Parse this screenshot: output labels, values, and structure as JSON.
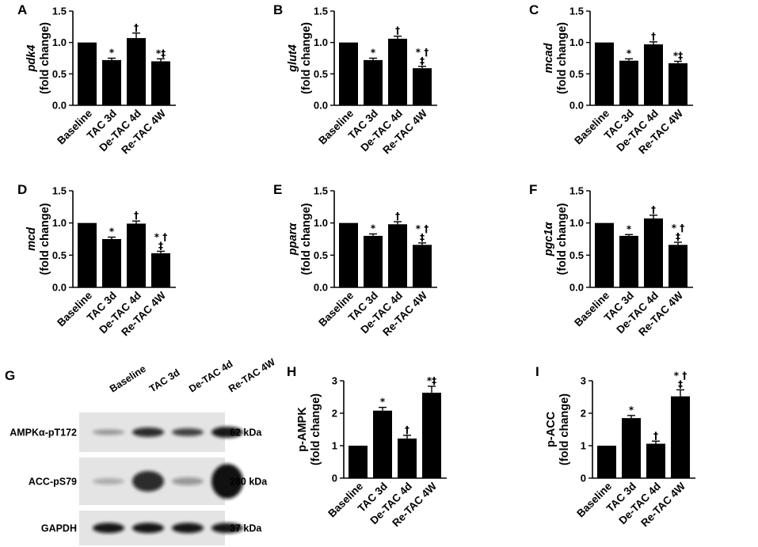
{
  "figure": {
    "categories": [
      "Baseline",
      "TAC 3d",
      "De-TAC 4d",
      "Re-TAC 4W"
    ],
    "blot": {
      "panel_label": "G",
      "lanes": [
        "Baseline",
        "TAC 3d",
        "De-TAC 4d",
        "Re-TAC 4W"
      ],
      "rows": [
        {
          "protein": "AMPKα-pT172",
          "size": "62 kDa"
        },
        {
          "protein": "ACC-pS79",
          "size": "280 kDa"
        },
        {
          "protein": "GAPDH",
          "size": "37 kDa"
        }
      ]
    }
  },
  "chart_data": [
    {
      "panel": "A",
      "type": "bar",
      "gene": "pdk4",
      "ylabel_line2": "(fold change)",
      "categories": [
        "Baseline",
        "TAC 3d",
        "De-TAC 4d",
        "Re-TAC 4W"
      ],
      "values": [
        1.0,
        0.72,
        1.07,
        0.7
      ],
      "errors": [
        0,
        0.03,
        0.08,
        0.04
      ],
      "yticks": [
        "0.0",
        "0.5",
        "1.0",
        "1.5"
      ],
      "ylim": [
        0,
        1.5
      ],
      "annotations": [
        [],
        [
          "*"
        ],
        [
          "†"
        ],
        [
          "*‡"
        ]
      ]
    },
    {
      "panel": "B",
      "type": "bar",
      "gene": "glut4",
      "ylabel_line2": "(fold change)",
      "categories": [
        "Baseline",
        "TAC 3d",
        "De-TAC 4d",
        "Re-TAC 4W"
      ],
      "values": [
        1.0,
        0.72,
        1.06,
        0.59
      ],
      "errors": [
        0,
        0.03,
        0.04,
        0.03
      ],
      "yticks": [
        "0.0",
        "0.5",
        "1.0",
        "1.5"
      ],
      "ylim": [
        0,
        1.5
      ],
      "annotations": [
        [],
        [
          "*"
        ],
        [
          "†"
        ],
        [
          "* †",
          "‡"
        ]
      ]
    },
    {
      "panel": "C",
      "type": "bar",
      "gene": "mcad",
      "ylabel_line2": "(fold change)",
      "categories": [
        "Baseline",
        "TAC 3d",
        "De-TAC 4d",
        "Re-TAC 4W"
      ],
      "values": [
        1.0,
        0.71,
        0.97,
        0.67
      ],
      "errors": [
        0,
        0.03,
        0.04,
        0.03
      ],
      "yticks": [
        "0.0",
        "0.5",
        "1.0",
        "1.5"
      ],
      "ylim": [
        0,
        1.5
      ],
      "annotations": [
        [],
        [
          "*"
        ],
        [
          "†"
        ],
        [
          "*‡"
        ]
      ]
    },
    {
      "panel": "D",
      "type": "bar",
      "gene": "mcd",
      "ylabel_line2": "(fold change)",
      "categories": [
        "Baseline",
        "TAC 3d",
        "De-TAC 4d",
        "Re-TAC 4W"
      ],
      "values": [
        1.0,
        0.75,
        0.99,
        0.53
      ],
      "errors": [
        0,
        0.03,
        0.04,
        0.03
      ],
      "yticks": [
        "0.0",
        "0.5",
        "1.0",
        "1.5"
      ],
      "ylim": [
        0,
        1.5
      ],
      "annotations": [
        [],
        [
          "*"
        ],
        [
          "†"
        ],
        [
          "* †",
          "‡"
        ]
      ]
    },
    {
      "panel": "E",
      "type": "bar",
      "gene": "pparα",
      "ylabel_line2": "(fold change)",
      "categories": [
        "Baseline",
        "TAC 3d",
        "De-TAC 4d",
        "Re-TAC 4W"
      ],
      "values": [
        1.0,
        0.8,
        0.98,
        0.66
      ],
      "errors": [
        0,
        0.03,
        0.04,
        0.03
      ],
      "yticks": [
        "0.0",
        "0.5",
        "1.0",
        "1.5"
      ],
      "ylim": [
        0,
        1.5
      ],
      "annotations": [
        [],
        [
          "*"
        ],
        [
          "†"
        ],
        [
          "* †",
          "‡"
        ]
      ]
    },
    {
      "panel": "F",
      "type": "bar",
      "gene": "pgc1α",
      "ylabel_line2": "(fold change)",
      "categories": [
        "Baseline",
        "TAC 3d",
        "De-TAC 4d",
        "Re-TAC 4W"
      ],
      "values": [
        1.0,
        0.8,
        1.07,
        0.66
      ],
      "errors": [
        0,
        0.02,
        0.05,
        0.04
      ],
      "yticks": [
        "0.0",
        "0.5",
        "1.0",
        "1.5"
      ],
      "ylim": [
        0,
        1.5
      ],
      "annotations": [
        [],
        [
          "*"
        ],
        [
          "†"
        ],
        [
          "* †",
          "‡"
        ]
      ]
    },
    {
      "panel": "H",
      "type": "bar",
      "ylabel_line1": "p-AMPK",
      "ylabel_line2": "(fold change)",
      "categories": [
        "Baseline",
        "TAC 3d",
        "De-TAC 4d",
        "Re-TAC 4W"
      ],
      "values": [
        1.0,
        2.08,
        1.22,
        2.63
      ],
      "errors": [
        0,
        0.1,
        0.1,
        0.2
      ],
      "yticks": [
        "0",
        "1",
        "2",
        "3"
      ],
      "ylim": [
        0,
        3
      ],
      "annotations": [
        [],
        [
          "*"
        ],
        [
          "†"
        ],
        [
          "*‡"
        ]
      ]
    },
    {
      "panel": "I",
      "type": "bar",
      "ylabel_line1": "p-ACC",
      "ylabel_line2": "(fold change)",
      "categories": [
        "Baseline",
        "TAC 3d",
        "De-TAC 4d",
        "Re-TAC 4W"
      ],
      "values": [
        1.0,
        1.85,
        1.06,
        2.52
      ],
      "errors": [
        0,
        0.08,
        0.08,
        0.2
      ],
      "yticks": [
        "0",
        "1",
        "2",
        "3"
      ],
      "ylim": [
        0,
        3
      ],
      "annotations": [
        [],
        [
          "*"
        ],
        [
          "†"
        ],
        [
          "* †",
          "‡"
        ]
      ]
    }
  ]
}
